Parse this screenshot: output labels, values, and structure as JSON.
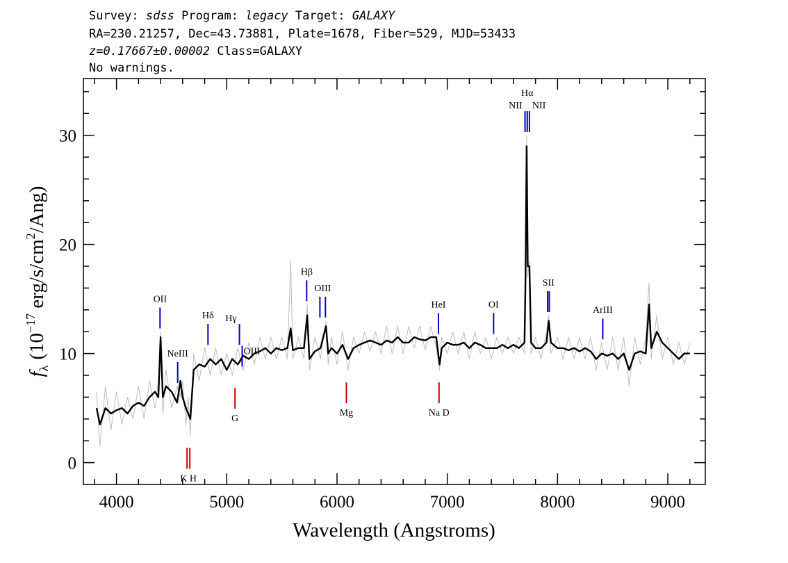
{
  "chart_data": {
    "type": "line",
    "header": {
      "survey_label": "Survey:",
      "survey": "sdss",
      "program_label": "Program:",
      "program": "legacy",
      "target_label": "Target:",
      "target": "GALAXY",
      "coords": "RA=230.21257, Dec=43.73881, Plate=1678, Fiber=529, MJD=53433",
      "redshift": "z=0.17667±0.00002",
      "class": "Class=GALAXY",
      "warnings": "No warnings."
    },
    "x_label": "Wavelength (Angstroms)",
    "y_label": {
      "f": "f",
      "sub": "λ",
      "pre": "(10",
      "exp": "−17",
      "mid": " erg/s/cm",
      "sq": "2",
      "post": "/Ang)"
    },
    "xlim": [
      3700,
      9340
    ],
    "ylim": [
      -2,
      35.2
    ],
    "xticks": [
      4000,
      5000,
      6000,
      7000,
      8000,
      9000
    ],
    "yticks": [
      0,
      10,
      20,
      30
    ],
    "xminorticks": [
      3800,
      4200,
      4400,
      4600,
      4800,
      5200,
      5400,
      5600,
      5800,
      6200,
      6400,
      6600,
      6800,
      7200,
      7400,
      7600,
      7800,
      8200,
      8400,
      8600,
      8800,
      9200
    ],
    "yminorticks": [
      2,
      4,
      6,
      8,
      12,
      14,
      16,
      18,
      22,
      24,
      26,
      28,
      32,
      34
    ],
    "x": [
      3820,
      3850,
      3900,
      3950,
      4000,
      4050,
      4100,
      4150,
      4200,
      4250,
      4300,
      4350,
      4380,
      4400,
      4420,
      4450,
      4500,
      4550,
      4580,
      4600,
      4630,
      4650,
      4670,
      4700,
      4750,
      4800,
      4850,
      4900,
      4950,
      5000,
      5050,
      5100,
      5150,
      5200,
      5250,
      5300,
      5350,
      5400,
      5450,
      5500,
      5550,
      5580,
      5600,
      5650,
      5700,
      5730,
      5750,
      5800,
      5850,
      5900,
      5920,
      5950,
      6000,
      6050,
      6100,
      6150,
      6200,
      6250,
      6300,
      6350,
      6400,
      6450,
      6500,
      6550,
      6600,
      6650,
      6700,
      6750,
      6800,
      6850,
      6900,
      6930,
      6950,
      7000,
      7050,
      7100,
      7150,
      7200,
      7250,
      7300,
      7350,
      7400,
      7450,
      7500,
      7550,
      7600,
      7650,
      7700,
      7710,
      7720,
      7730,
      7745,
      7760,
      7800,
      7850,
      7900,
      7920,
      7940,
      8000,
      8050,
      8100,
      8150,
      8200,
      8250,
      8300,
      8350,
      8400,
      8450,
      8500,
      8550,
      8600,
      8650,
      8700,
      8750,
      8800,
      8830,
      8850,
      8900,
      8950,
      9000,
      9050,
      9100,
      9150,
      9200
    ],
    "series": [
      {
        "color": "#bdbdbd",
        "values": [
          6.5,
          1.5,
          7,
          3,
          6.5,
          3.5,
          6,
          4,
          7,
          4,
          7.5,
          5,
          7.5,
          12,
          4.5,
          8.5,
          5,
          7,
          6,
          7.5,
          3.5,
          6,
          2.5,
          10,
          7.5,
          10.5,
          8,
          10.5,
          8,
          10,
          8,
          10.5,
          8.5,
          11,
          9,
          11.5,
          9.5,
          11.5,
          9.5,
          11.5,
          9.5,
          18.5,
          9.5,
          11.5,
          9.5,
          14.5,
          8.5,
          11.5,
          9.5,
          13,
          9,
          11.5,
          9,
          12,
          8.5,
          11.5,
          10,
          12,
          10.2,
          12,
          10,
          12.5,
          10,
          12.5,
          10,
          12.5,
          10.5,
          12.5,
          10.3,
          12.5,
          10.5,
          8.5,
          11.5,
          10,
          12,
          10,
          12,
          9.5,
          12,
          10,
          11.5,
          9.5,
          11.5,
          10,
          11.5,
          10,
          11.5,
          10,
          17.5,
          30,
          17,
          18.5,
          10,
          11.5,
          9.5,
          12,
          13.5,
          10,
          11.5,
          9.5,
          11.5,
          9.5,
          11.5,
          9.5,
          11.5,
          8.5,
          11,
          8.5,
          11.5,
          8.5,
          11.5,
          7,
          11.5,
          9,
          11.5,
          16.5,
          9.5,
          13.5,
          9.5,
          11.5,
          9,
          11,
          9,
          11
        ]
      },
      {
        "color": "#000000",
        "values": [
          5,
          3.5,
          5,
          4.5,
          4.8,
          5,
          4.5,
          5.2,
          5.5,
          5.2,
          6,
          6.5,
          6,
          11.5,
          6,
          7,
          6.5,
          5.5,
          7.5,
          6,
          5,
          4.5,
          4,
          8.5,
          9,
          8.8,
          9.5,
          9,
          9.5,
          8.5,
          9.5,
          9,
          9.8,
          9.5,
          10,
          10.2,
          10.5,
          10,
          10.5,
          10.3,
          10.5,
          12.3,
          10.3,
          10.5,
          10.5,
          13.5,
          9.5,
          10.2,
          10.5,
          12.5,
          10,
          10.5,
          10,
          10.8,
          9.5,
          10.5,
          10.8,
          11,
          11.2,
          11,
          10.8,
          11.2,
          11,
          11.5,
          11,
          11,
          11.5,
          11.3,
          11.2,
          11.5,
          11.5,
          9,
          10.5,
          11,
          10.8,
          10.8,
          11,
          10.5,
          11,
          10.8,
          10.5,
          10.5,
          10.5,
          10.8,
          10.5,
          10.8,
          10.5,
          11,
          17,
          29,
          18,
          18,
          11,
          10.5,
          10.5,
          11,
          13,
          11,
          10.5,
          10.5,
          10.3,
          10.5,
          10.2,
          10.5,
          10.2,
          9.5,
          10,
          9.8,
          10,
          9.5,
          10,
          8.5,
          10,
          10.2,
          10,
          14.5,
          10.5,
          12,
          11,
          10.5,
          10,
          9.5,
          10,
          10
        ]
      }
    ],
    "emission_color": "#0000cc",
    "absorption_color": "#cc0000",
    "emission_lines": [
      {
        "label": "OII",
        "x": [
          4395
        ]
      },
      {
        "label": "NeIII",
        "x": [
          4555
        ]
      },
      {
        "label": "Hδ",
        "x": [
          4830
        ]
      },
      {
        "label": "Hγ",
        "x": [
          5115
        ]
      },
      {
        "label": "OIII",
        "x": [
          5140
        ]
      },
      {
        "label": "Hβ",
        "x": [
          5725
        ]
      },
      {
        "label": "OIII",
        "x": [
          5845,
          5895
        ]
      },
      {
        "label": "HeI",
        "x": [
          6920
        ]
      },
      {
        "label": "OI",
        "x": [
          7420
        ]
      },
      {
        "label": "NII",
        "x": [
          7705
        ]
      },
      {
        "label": "Hα",
        "x": [
          7725
        ]
      },
      {
        "label": "NII",
        "x": [
          7745
        ]
      },
      {
        "label": "SII",
        "x": [
          7910,
          7925
        ]
      },
      {
        "label": "ArIII",
        "x": [
          8410
        ]
      }
    ],
    "absorption_lines": [
      {
        "label": "K H",
        "x": [
          4640,
          4665
        ]
      },
      {
        "label": "G",
        "x": [
          5075
        ]
      },
      {
        "label": "Mg",
        "x": [
          6085
        ]
      },
      {
        "label": "Na D",
        "x": [
          6925
        ]
      }
    ]
  }
}
